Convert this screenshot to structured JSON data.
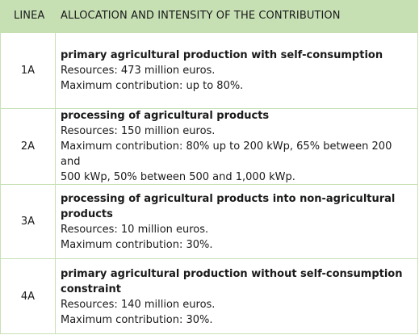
{
  "table": {
    "headers": {
      "linea": "LINEA",
      "allocation": "ALLOCATION AND INTENSITY OF THE CONTRIBUTION"
    },
    "rows": [
      {
        "code": "1A",
        "title": "primary agricultural production with self-consumption",
        "resources": "Resources: 473 million euros.",
        "contribution_lines": [
          "Maximum contribution: up to 80%."
        ]
      },
      {
        "code": "2A",
        "title": "processing of agricultural products",
        "resources": "Resources: 150 million euros.",
        "contribution_lines": [
          "Maximum contribution: 80% up to 200 kWp, 65% between 200 and",
          "500 kWp, 50% between 500 and 1,000 kWp."
        ]
      },
      {
        "code": "3A",
        "title": "processing of agricultural products into non-agricultural products",
        "resources": "Resources: 10 million euros.",
        "contribution_lines": [
          "Maximum contribution: 30%."
        ]
      },
      {
        "code": "4A",
        "title_lines": [
          "primary agricultural production without self-consumption",
          "constraint"
        ],
        "resources": "Resources: 140 million euros.",
        "contribution_lines": [
          "Maximum contribution: 30%."
        ]
      }
    ]
  },
  "colors": {
    "header_bg": "#c6e0b4",
    "grid": "#c6e0b4",
    "text": "#1a1a1a"
  }
}
